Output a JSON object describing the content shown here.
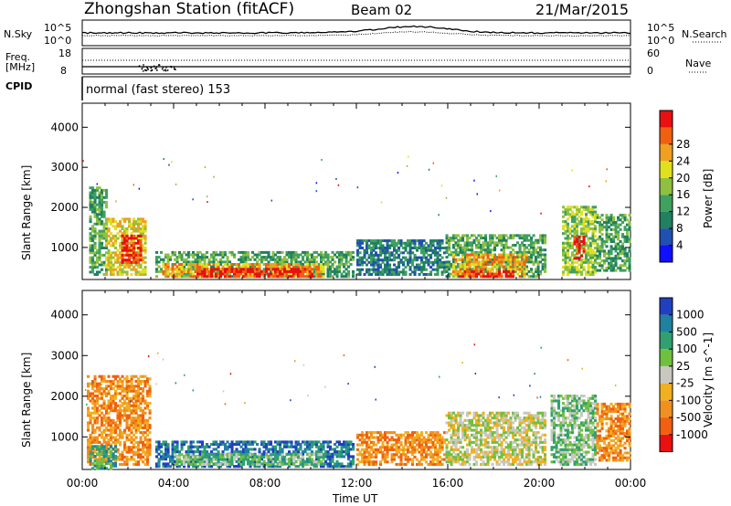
{
  "header": {
    "station": "Zhongshan Station (fitACF)",
    "beam": "Beam 02",
    "date": "21/Mar/2015"
  },
  "strip1": {
    "left_label": "N.Sky",
    "right_label": "N.Search",
    "left_ticks": [
      "10^5",
      "10^0"
    ],
    "right_ticks": [
      "10^5",
      "10^0"
    ]
  },
  "strip2": {
    "left_label_1": "Freq.",
    "left_label_2": "[MHz]",
    "right_label": "Nave",
    "left_ticks": [
      "18",
      "8"
    ],
    "right_ticks": [
      "60",
      "0"
    ]
  },
  "cpid": {
    "label": "CPID",
    "text": "normal (fast stereo) 153"
  },
  "chart_data": [
    {
      "type": "heatmap",
      "quantity": "Power",
      "ylabel": "Slant Range [km]",
      "ylim": [
        200,
        4600
      ],
      "yticks": [
        1000,
        2000,
        3000,
        4000
      ],
      "xlim": [
        0,
        24
      ],
      "colorbar_label": "Power [dB]",
      "colorbar_ticks": [
        4,
        8,
        12,
        16,
        20,
        24,
        28
      ],
      "colorbar_colors": [
        "#1010ff",
        "#2050b0",
        "#208060",
        "#40a060",
        "#90c040",
        "#e0e020",
        "#f0a020",
        "#f06010",
        "#e81010"
      ],
      "regions": [
        {
          "t0": 0.3,
          "t1": 1.0,
          "r0": 300,
          "r1": 2500,
          "level": 3
        },
        {
          "t0": 1.0,
          "t1": 2.8,
          "r0": 300,
          "r1": 1700,
          "level": 5
        },
        {
          "t0": 1.7,
          "t1": 2.6,
          "r0": 600,
          "r1": 1300,
          "level": 8
        },
        {
          "t0": 3.2,
          "t1": 11.8,
          "r0": 250,
          "r1": 900,
          "level": 3
        },
        {
          "t0": 3.5,
          "t1": 10.5,
          "r0": 250,
          "r1": 600,
          "level": 6
        },
        {
          "t0": 5.0,
          "t1": 10.0,
          "r0": 250,
          "r1": 450,
          "level": 8
        },
        {
          "t0": 12.0,
          "t1": 15.8,
          "r0": 300,
          "r1": 1200,
          "level": 2
        },
        {
          "t0": 15.9,
          "t1": 20.3,
          "r0": 250,
          "r1": 1300,
          "level": 3
        },
        {
          "t0": 16.2,
          "t1": 19.5,
          "r0": 250,
          "r1": 800,
          "level": 6
        },
        {
          "t0": 16.5,
          "t1": 19.0,
          "r0": 250,
          "r1": 400,
          "level": 8
        },
        {
          "t0": 21.0,
          "t1": 22.5,
          "r0": 300,
          "r1": 2000,
          "level": 4
        },
        {
          "t0": 21.5,
          "t1": 22.0,
          "r0": 700,
          "r1": 1300,
          "level": 8
        },
        {
          "t0": 22.5,
          "t1": 24.0,
          "r0": 400,
          "r1": 1800,
          "level": 3
        }
      ]
    },
    {
      "type": "heatmap",
      "quantity": "Velocity",
      "ylabel": "Slant Range [km]",
      "ylim": [
        200,
        4600
      ],
      "yticks": [
        1000,
        2000,
        3000,
        4000
      ],
      "xlim": [
        0,
        24
      ],
      "xticks": [
        "00:00",
        "04:00",
        "08:00",
        "12:00",
        "16:00",
        "20:00",
        "00:00"
      ],
      "xlabel": "Time UT",
      "colorbar_label": "Velocity [m s^-1]",
      "colorbar_ticks": [
        1000,
        500,
        100,
        25,
        -25,
        -100,
        -500,
        -1000
      ],
      "colorbar_colors": [
        "#2040c0",
        "#2080a0",
        "#30a070",
        "#70c040",
        "#c8c8c0",
        "#f0b020",
        "#f09020",
        "#f06010",
        "#e81010"
      ],
      "regions": [
        {
          "t0": 0.2,
          "t1": 3.0,
          "r0": 300,
          "r1": 2500,
          "level": 6
        },
        {
          "t0": 0.3,
          "t1": 1.5,
          "r0": 200,
          "r1": 800,
          "level": 2
        },
        {
          "t0": 3.2,
          "t1": 11.8,
          "r0": 250,
          "r1": 900,
          "level": 1
        },
        {
          "t0": 4.0,
          "t1": 10.5,
          "r0": 300,
          "r1": 600,
          "level": 3
        },
        {
          "t0": 12.0,
          "t1": 15.8,
          "r0": 300,
          "r1": 1100,
          "level": 6
        },
        {
          "t0": 15.9,
          "t1": 20.3,
          "r0": 300,
          "r1": 1600,
          "level": 4
        },
        {
          "t0": 20.5,
          "t1": 22.5,
          "r0": 300,
          "r1": 2000,
          "level": 3
        },
        {
          "t0": 22.5,
          "t1": 24.0,
          "r0": 400,
          "r1": 1800,
          "level": 6
        }
      ]
    }
  ]
}
